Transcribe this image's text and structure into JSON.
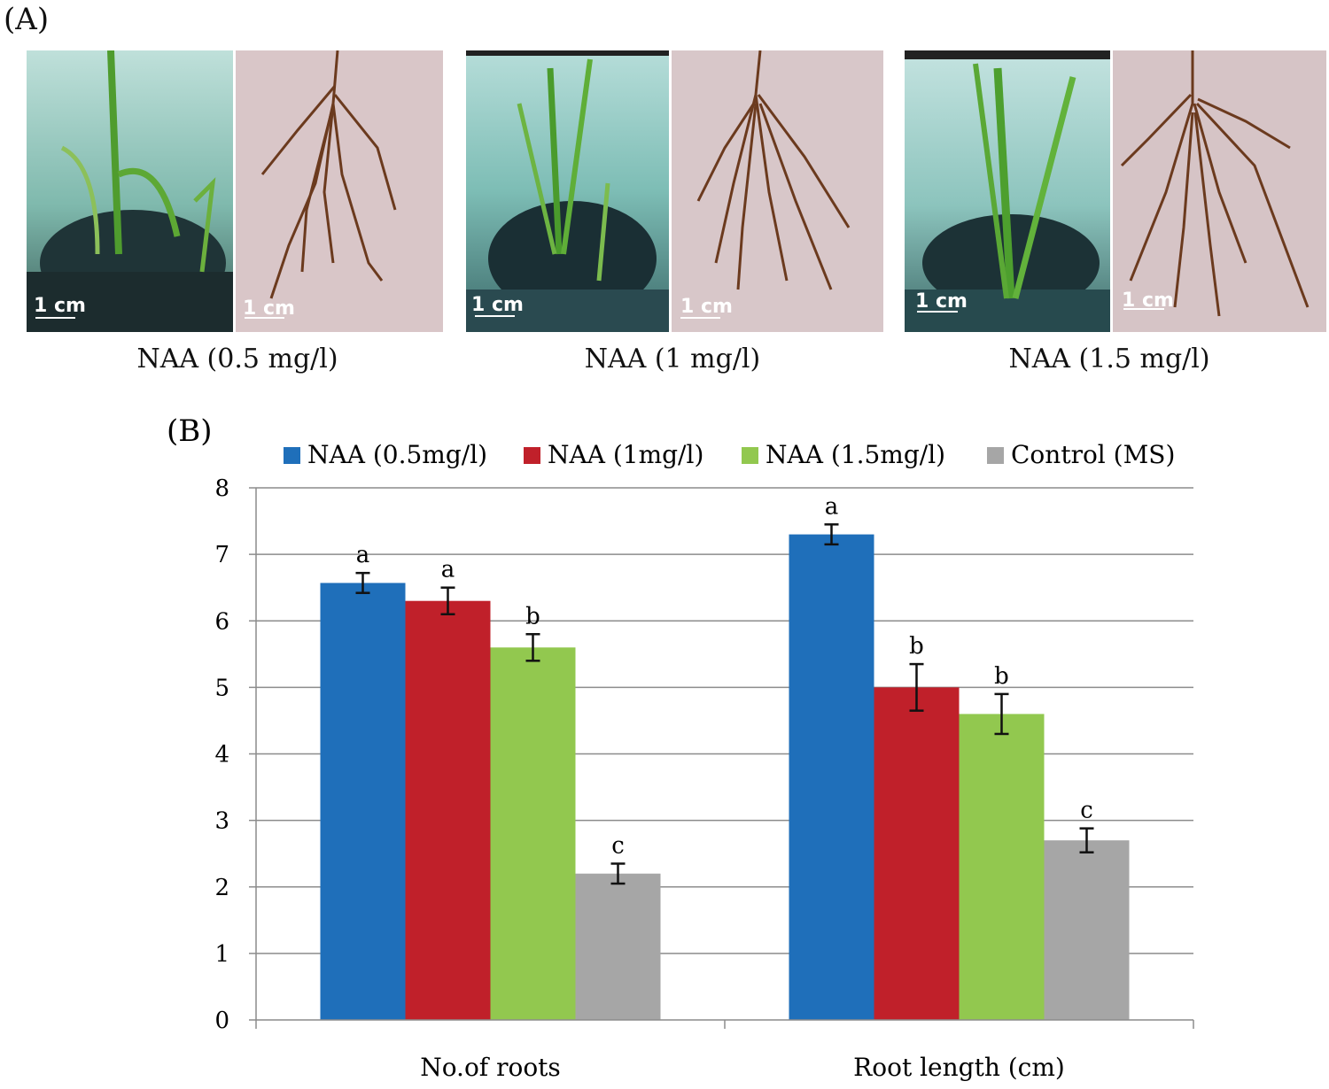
{
  "panel_a": {
    "label": "(A)",
    "panels": [
      {
        "caption": "NAA (0.5 mg/l)",
        "plant_scale": "1 cm",
        "root_scale": "1 cm"
      },
      {
        "caption": "NAA (1 mg/l)",
        "plant_scale": "1 cm",
        "root_scale": "1 cm"
      },
      {
        "caption": "NAA (1.5 mg/l)",
        "plant_scale": "1 cm",
        "root_scale": "1 cm"
      }
    ]
  },
  "chart_data": {
    "panel_label": "(B)",
    "type": "bar",
    "categories": [
      "No.of roots",
      "Root length (cm)"
    ],
    "series": [
      {
        "name": "NAA (0.5mg/l)",
        "color": "#1f6fba",
        "values": [
          6.57,
          7.3
        ],
        "errors": [
          0.15,
          0.15
        ],
        "letters": [
          "a",
          "a"
        ]
      },
      {
        "name": "NAA (1mg/l)",
        "color": "#c0202a",
        "values": [
          6.3,
          5.0
        ],
        "errors": [
          0.2,
          0.35
        ],
        "letters": [
          "a",
          "b"
        ]
      },
      {
        "name": "NAA (1.5mg/l)",
        "color": "#92c84f",
        "values": [
          5.6,
          4.6
        ],
        "errors": [
          0.2,
          0.3
        ],
        "letters": [
          "b",
          "b"
        ]
      },
      {
        "name": "Control (MS)",
        "color": "#a6a6a6",
        "values": [
          2.2,
          2.7
        ],
        "errors": [
          0.15,
          0.18
        ],
        "letters": [
          "c",
          "c"
        ]
      }
    ],
    "ylim": [
      0,
      8
    ],
    "yticks": [
      0,
      1,
      2,
      3,
      4,
      5,
      6,
      7,
      8
    ],
    "grid": true,
    "legend_position": "top"
  }
}
